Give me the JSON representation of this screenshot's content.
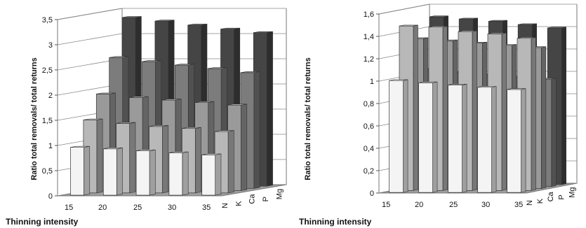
{
  "chart_data": [
    {
      "type": "bar",
      "title": "",
      "xlabel": "Thinning intensity",
      "ylabel": "Ratio total removals/ total returns",
      "ylim": [
        0,
        3.5
      ],
      "yticks": [
        "0",
        "0,5",
        "1",
        "1,5",
        "2",
        "2,5",
        "3",
        "3,5"
      ],
      "categories": [
        "15",
        "20",
        "25",
        "30",
        "35"
      ],
      "series": [
        {
          "name": "N",
          "values": [
            0.95,
            0.92,
            0.88,
            0.84,
            0.8
          ],
          "color": "#f4f4f4"
        },
        {
          "name": "K",
          "values": [
            1.45,
            1.38,
            1.32,
            1.28,
            1.22
          ],
          "color": "#b8b8b8"
        },
        {
          "name": "Ca",
          "values": [
            1.92,
            1.85,
            1.8,
            1.75,
            1.7
          ],
          "color": "#9a9a9a"
        },
        {
          "name": "P",
          "values": [
            2.6,
            2.52,
            2.45,
            2.38,
            2.3
          ],
          "color": "#7c7c7c"
        },
        {
          "name": "Mg",
          "values": [
            3.35,
            3.28,
            3.2,
            3.12,
            3.05
          ],
          "color": "#454545"
        }
      ],
      "grid": true,
      "view": "3d"
    },
    {
      "type": "bar",
      "title": "",
      "xlabel": "Thinning intensity",
      "ylabel": "Ratio total removals/ total returns",
      "ylim": [
        0,
        1.6
      ],
      "yticks": [
        "0",
        "0,2",
        "0,4",
        "0,6",
        "0,8",
        "1",
        "1,2",
        "1,4",
        "1,6"
      ],
      "categories": [
        "15",
        "20",
        "25",
        "30",
        "35"
      ],
      "series": [
        {
          "name": "N",
          "values": [
            1.0,
            0.98,
            0.96,
            0.94,
            0.92
          ],
          "color": "#f4f4f4"
        },
        {
          "name": "K",
          "values": [
            1.47,
            1.46,
            1.42,
            1.4,
            1.36
          ],
          "color": "#b8b8b8"
        },
        {
          "name": "Ca",
          "values": [
            1.34,
            1.32,
            1.3,
            1.28,
            1.26
          ],
          "color": "#9a9a9a"
        },
        {
          "name": "P",
          "values": [
            1.05,
            1.02,
            1.0,
            0.98,
            0.96
          ],
          "color": "#7c7c7c"
        },
        {
          "name": "Mg",
          "values": [
            1.5,
            1.48,
            1.46,
            1.43,
            1.4
          ],
          "color": "#454545"
        }
      ],
      "grid": true,
      "view": "3d"
    }
  ]
}
